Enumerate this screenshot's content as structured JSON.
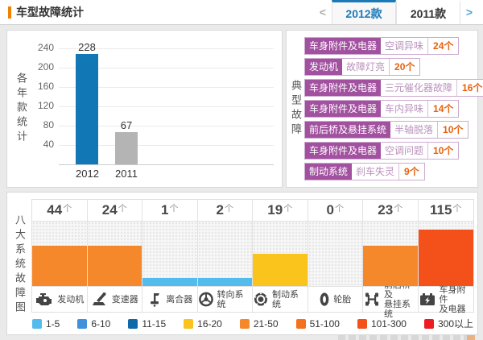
{
  "header": {
    "title": "车型故障统计",
    "prev_arrow": "<",
    "next_arrow": ">",
    "tabs": [
      {
        "label": "2012款",
        "active": true
      },
      {
        "label": "2011款",
        "active": false
      }
    ]
  },
  "typical_faults": {
    "section_label": "典型故障",
    "items": [
      {
        "system": "车身附件及电器",
        "fault": "空调异味",
        "count": "24个"
      },
      {
        "system": "发动机",
        "fault": "故障灯亮",
        "count": "20个"
      },
      {
        "system": "车身附件及电器",
        "fault": "三元催化器故障",
        "count": "16个"
      },
      {
        "system": "车身附件及电器",
        "fault": "车内异味",
        "count": "14个"
      },
      {
        "system": "前后桥及悬挂系统",
        "fault": "半轴脱落",
        "count": "10个"
      },
      {
        "system": "车身附件及电器",
        "fault": "空调问题",
        "count": "10个"
      },
      {
        "system": "制动系统",
        "fault": "刹车失灵",
        "count": "9个"
      }
    ],
    "tag_colors": {
      "system_bg": "#A1519F",
      "fault_text": "#B992BC",
      "count_text": "#E8600F",
      "border": "#CDABCF"
    }
  },
  "systems_chart": {
    "section_label": "八大系统故障图",
    "unit": "个",
    "columns": [
      {
        "lines": [
          "发动机"
        ],
        "count": "44",
        "bucket": "21-50",
        "icon": "engine-icon"
      },
      {
        "lines": [
          "变速器"
        ],
        "count": "24",
        "bucket": "21-50",
        "icon": "transmission-icon"
      },
      {
        "lines": [
          "离合器"
        ],
        "count": "1",
        "bucket": "1-5",
        "icon": "clutch-icon"
      },
      {
        "lines": [
          "转向系统"
        ],
        "count": "2",
        "bucket": "1-5",
        "icon": "steering-wheel-icon"
      },
      {
        "lines": [
          "制动系统"
        ],
        "count": "19",
        "bucket": "16-20",
        "icon": "brake-disc-icon"
      },
      {
        "lines": [
          "轮胎"
        ],
        "count": "0",
        "bucket": null,
        "icon": "tire-icon"
      },
      {
        "lines": [
          "前后桥及",
          "悬挂系统"
        ],
        "count": "23",
        "bucket": "21-50",
        "icon": "axle-icon"
      },
      {
        "lines": [
          "车身附件",
          "及电器"
        ],
        "count": "115",
        "bucket": "101-300",
        "icon": "battery-icon"
      }
    ],
    "legend": [
      {
        "label": "1-5",
        "color": "#54BCEC"
      },
      {
        "label": "6-10",
        "color": "#4090DC"
      },
      {
        "label": "11-15",
        "color": "#1168A8"
      },
      {
        "label": "16-20",
        "color": "#FAC41D"
      },
      {
        "label": "21-50",
        "color": "#F6882C"
      },
      {
        "label": "51-100",
        "color": "#F4711F"
      },
      {
        "label": "101-300",
        "color": "#F4511A"
      },
      {
        "label": "300以上",
        "color": "#EC1C23"
      }
    ]
  },
  "chart_data": [
    {
      "id": "yearly",
      "type": "bar",
      "title": "各年款统计",
      "ylabel": "各年款统计",
      "categories": [
        "2012",
        "2011"
      ],
      "values": [
        228,
        67
      ],
      "bar_colors": [
        "#1278B5",
        "#B4B4B4"
      ],
      "yticks": [
        40,
        80,
        120,
        160,
        200,
        240
      ],
      "ylim": [
        0,
        246
      ],
      "grid": true,
      "legend_position": "none"
    },
    {
      "id": "systems",
      "type": "bar",
      "title": "八大系统故障图",
      "categories": [
        "发动机",
        "变速器",
        "离合器",
        "转向系统",
        "制动系统",
        "轮胎",
        "前后桥及悬挂系统",
        "车身附件及电器"
      ],
      "values": [
        44,
        24,
        1,
        2,
        19,
        0,
        23,
        115
      ],
      "value_buckets": [
        "21-50",
        "21-50",
        "1-5",
        "1-5",
        "16-20",
        null,
        "21-50",
        "101-300"
      ],
      "buckets": [
        "1-5",
        "6-10",
        "11-15",
        "16-20",
        "21-50",
        "51-100",
        "101-300",
        "300以上"
      ],
      "bucket_colors": [
        "#54BCEC",
        "#4090DC",
        "#1168A8",
        "#FAC41D",
        "#F6882C",
        "#F4711F",
        "#F4511A",
        "#EC1C23"
      ],
      "encoding": "bar height and color encode the count bucket",
      "legend_position": "bottom"
    }
  ]
}
